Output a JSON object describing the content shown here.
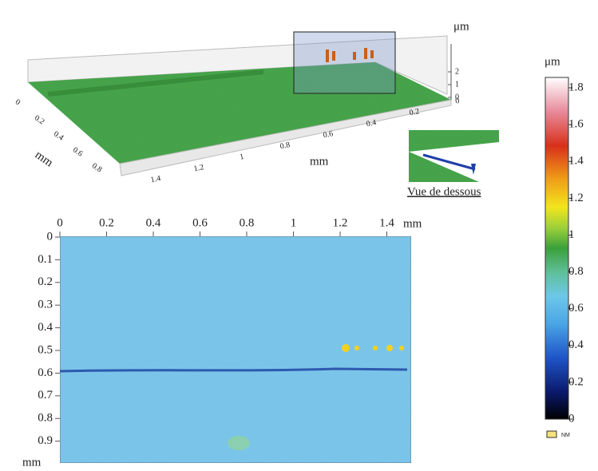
{
  "surface_view": {
    "z_axis": {
      "unit": "μm",
      "ticks": [
        "2",
        "1",
        "0"
      ]
    },
    "depth_axis": {
      "unit": "mm",
      "ticks": [
        "0",
        "0.2",
        "0.4",
        "0.6",
        "0.8"
      ]
    },
    "length_axis": {
      "unit": "mm",
      "ticks": [
        "1.4",
        "1.2",
        "1",
        "0.8",
        "0.6",
        "0.4",
        "0.2",
        "0"
      ]
    },
    "inset_caption": "Vue de dessous"
  },
  "map_view": {
    "x_axis": {
      "unit": "mm",
      "ticks": [
        "0",
        "0.2",
        "0.4",
        "0.6",
        "0.8",
        "1",
        "1.2",
        "1.4"
      ]
    },
    "y_axis": {
      "unit": "mm",
      "ticks": [
        "0",
        "0.1",
        "0.2",
        "0.3",
        "0.4",
        "0.5",
        "0.6",
        "0.7",
        "0.8",
        "0.9"
      ]
    }
  },
  "colorbar": {
    "unit": "μm",
    "ticks": [
      "0",
      "0.2",
      "0.4",
      "0.6",
      "0.8",
      "1",
      "1.2",
      "1.4",
      "1.6",
      "1.8"
    ],
    "legend": "NM"
  }
}
